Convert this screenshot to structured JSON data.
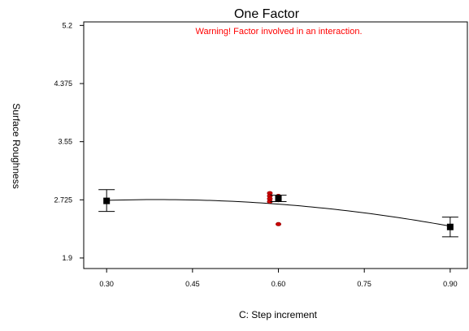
{
  "chart_data": {
    "type": "line",
    "title": "One Factor",
    "annotation": "Warning! Factor involved in an interaction.",
    "xlabel": "C: Step increment",
    "ylabel": "Surface Roughness",
    "x_ticks": [
      "0.30",
      "0.45",
      "0.60",
      "0.75",
      "0.90"
    ],
    "y_ticks": [
      "1.9",
      "2.725",
      "3.55",
      "4.375",
      "5.2"
    ],
    "xlim": [
      0.26,
      0.93
    ],
    "ylim": [
      1.75,
      5.25
    ],
    "grid": false,
    "legend": "none",
    "curve": {
      "x": [
        0.3,
        0.45,
        0.6,
        0.75,
        0.9
      ],
      "y": [
        2.71,
        2.735,
        2.67,
        2.52,
        2.36
      ]
    },
    "design_points": [
      {
        "x": 0.3,
        "y": 2.71,
        "err_high": 2.87,
        "err_low": 2.56
      },
      {
        "x": 0.6,
        "y": 2.74,
        "err_high": 2.79,
        "err_low": 2.7
      },
      {
        "x": 0.9,
        "y": 2.34,
        "err_high": 2.48,
        "err_low": 2.2
      }
    ],
    "observed_points": [
      {
        "x": 0.585,
        "y": 2.82
      },
      {
        "x": 0.585,
        "y": 2.78
      },
      {
        "x": 0.585,
        "y": 2.74
      },
      {
        "x": 0.585,
        "y": 2.7
      },
      {
        "x": 0.6,
        "y": 2.78
      },
      {
        "x": 0.6,
        "y": 2.75
      },
      {
        "x": 0.6,
        "y": 2.72
      },
      {
        "x": 0.6,
        "y": 2.38
      }
    ],
    "colors": {
      "curve": "#000000",
      "design_point": "#000000",
      "observed_point": "#cc0000",
      "annotation": "#ff0000"
    }
  }
}
